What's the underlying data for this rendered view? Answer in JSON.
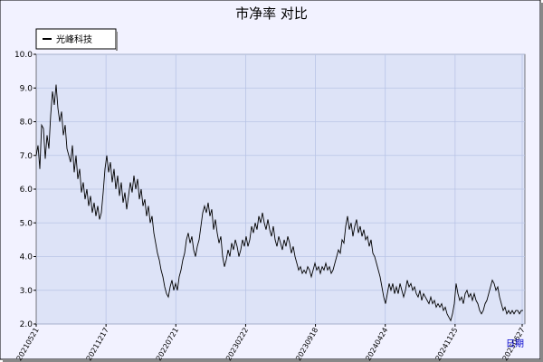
{
  "chart_data": {
    "type": "line",
    "title": "市净率  对比",
    "xlabel": "日期",
    "ylabel": "",
    "ylim": [
      2.0,
      10.0
    ],
    "yticks": [
      "2.0",
      "3.0",
      "4.0",
      "5.0",
      "6.0",
      "7.0",
      "8.0",
      "9.0",
      "10.0"
    ],
    "xticks": [
      "20210521",
      "20211217",
      "20220721",
      "20230222",
      "20230918",
      "20240424",
      "20241125",
      "20250627"
    ],
    "legend": "top-left",
    "grid": true,
    "colors": {
      "background": "#dde3f7",
      "line": "#000000",
      "frame": "#f2f2ff",
      "grid": "#b9c4e6"
    },
    "series": [
      {
        "name": "光峰科技",
        "points": [
          [
            0,
            7.0
          ],
          [
            1,
            7.3
          ],
          [
            2,
            6.6
          ],
          [
            3,
            7.9
          ],
          [
            4,
            7.8
          ],
          [
            5,
            6.9
          ],
          [
            6,
            7.6
          ],
          [
            7,
            7.2
          ],
          [
            8,
            8.2
          ],
          [
            9,
            8.9
          ],
          [
            10,
            8.5
          ],
          [
            11,
            9.1
          ],
          [
            12,
            8.4
          ],
          [
            13,
            8.0
          ],
          [
            14,
            8.3
          ],
          [
            15,
            7.6
          ],
          [
            16,
            7.9
          ],
          [
            17,
            7.2
          ],
          [
            18,
            7.0
          ],
          [
            19,
            6.8
          ],
          [
            20,
            7.3
          ],
          [
            21,
            6.5
          ],
          [
            22,
            7.0
          ],
          [
            23,
            6.3
          ],
          [
            24,
            6.6
          ],
          [
            25,
            5.9
          ],
          [
            26,
            6.2
          ],
          [
            27,
            5.7
          ],
          [
            28,
            6.0
          ],
          [
            29,
            5.5
          ],
          [
            30,
            5.8
          ],
          [
            31,
            5.3
          ],
          [
            32,
            5.6
          ],
          [
            33,
            5.2
          ],
          [
            34,
            5.5
          ],
          [
            35,
            5.1
          ],
          [
            36,
            5.3
          ],
          [
            37,
            5.9
          ],
          [
            38,
            6.6
          ],
          [
            39,
            7.0
          ],
          [
            40,
            6.5
          ],
          [
            41,
            6.8
          ],
          [
            42,
            6.2
          ],
          [
            43,
            6.6
          ],
          [
            44,
            6.0
          ],
          [
            45,
            6.4
          ],
          [
            46,
            5.8
          ],
          [
            47,
            6.2
          ],
          [
            48,
            5.6
          ],
          [
            49,
            5.9
          ],
          [
            50,
            5.4
          ],
          [
            51,
            5.8
          ],
          [
            52,
            6.2
          ],
          [
            53,
            5.9
          ],
          [
            54,
            6.4
          ],
          [
            55,
            6.0
          ],
          [
            56,
            6.3
          ],
          [
            57,
            5.7
          ],
          [
            58,
            6.0
          ],
          [
            59,
            5.5
          ],
          [
            60,
            5.7
          ],
          [
            61,
            5.2
          ],
          [
            62,
            5.5
          ],
          [
            63,
            5.0
          ],
          [
            64,
            5.2
          ],
          [
            65,
            4.7
          ],
          [
            66,
            4.4
          ],
          [
            67,
            4.1
          ],
          [
            68,
            3.9
          ],
          [
            69,
            3.6
          ],
          [
            70,
            3.4
          ],
          [
            71,
            3.1
          ],
          [
            72,
            2.9
          ],
          [
            73,
            2.8
          ],
          [
            74,
            3.1
          ],
          [
            75,
            3.3
          ],
          [
            76,
            3.0
          ],
          [
            77,
            3.2
          ],
          [
            78,
            3.0
          ],
          [
            79,
            3.4
          ],
          [
            80,
            3.6
          ],
          [
            81,
            3.9
          ],
          [
            82,
            4.1
          ],
          [
            83,
            4.5
          ],
          [
            84,
            4.7
          ],
          [
            85,
            4.4
          ],
          [
            86,
            4.6
          ],
          [
            87,
            4.2
          ],
          [
            88,
            4.0
          ],
          [
            89,
            4.3
          ],
          [
            90,
            4.5
          ],
          [
            91,
            4.9
          ],
          [
            92,
            5.3
          ],
          [
            93,
            5.5
          ],
          [
            94,
            5.3
          ],
          [
            95,
            5.6
          ],
          [
            96,
            5.2
          ],
          [
            97,
            5.4
          ],
          [
            98,
            4.8
          ],
          [
            99,
            5.1
          ],
          [
            100,
            4.7
          ],
          [
            101,
            4.4
          ],
          [
            102,
            4.6
          ],
          [
            103,
            4.0
          ],
          [
            104,
            3.7
          ],
          [
            105,
            3.9
          ],
          [
            106,
            4.2
          ],
          [
            107,
            4.0
          ],
          [
            108,
            4.4
          ],
          [
            109,
            4.2
          ],
          [
            110,
            4.5
          ],
          [
            111,
            4.3
          ],
          [
            112,
            4.0
          ],
          [
            113,
            4.2
          ],
          [
            114,
            4.5
          ],
          [
            115,
            4.3
          ],
          [
            116,
            4.6
          ],
          [
            117,
            4.3
          ],
          [
            118,
            4.5
          ],
          [
            119,
            4.9
          ],
          [
            120,
            4.7
          ],
          [
            121,
            5.0
          ],
          [
            122,
            4.8
          ],
          [
            123,
            5.2
          ],
          [
            124,
            5.0
          ],
          [
            125,
            5.3
          ],
          [
            126,
            5.0
          ],
          [
            127,
            4.8
          ],
          [
            128,
            5.1
          ],
          [
            129,
            4.8
          ],
          [
            130,
            4.6
          ],
          [
            131,
            4.9
          ],
          [
            132,
            4.5
          ],
          [
            133,
            4.3
          ],
          [
            134,
            4.6
          ],
          [
            135,
            4.4
          ],
          [
            136,
            4.2
          ],
          [
            137,
            4.5
          ],
          [
            138,
            4.3
          ],
          [
            139,
            4.6
          ],
          [
            140,
            4.4
          ],
          [
            141,
            4.1
          ],
          [
            142,
            4.3
          ],
          [
            143,
            4.0
          ],
          [
            144,
            3.8
          ],
          [
            145,
            3.6
          ],
          [
            146,
            3.7
          ],
          [
            147,
            3.5
          ],
          [
            148,
            3.6
          ],
          [
            149,
            3.5
          ],
          [
            150,
            3.7
          ],
          [
            151,
            3.6
          ],
          [
            152,
            3.4
          ],
          [
            153,
            3.6
          ],
          [
            154,
            3.8
          ],
          [
            155,
            3.6
          ],
          [
            156,
            3.7
          ],
          [
            157,
            3.5
          ],
          [
            158,
            3.7
          ],
          [
            159,
            3.6
          ],
          [
            160,
            3.8
          ],
          [
            161,
            3.6
          ],
          [
            162,
            3.7
          ],
          [
            163,
            3.5
          ],
          [
            164,
            3.6
          ],
          [
            165,
            3.8
          ],
          [
            166,
            4.0
          ],
          [
            167,
            4.2
          ],
          [
            168,
            4.1
          ],
          [
            169,
            4.5
          ],
          [
            170,
            4.4
          ],
          [
            171,
            4.9
          ],
          [
            172,
            5.2
          ],
          [
            173,
            4.8
          ],
          [
            174,
            5.0
          ],
          [
            175,
            4.6
          ],
          [
            176,
            4.9
          ],
          [
            177,
            5.1
          ],
          [
            178,
            4.7
          ],
          [
            179,
            4.9
          ],
          [
            180,
            4.6
          ],
          [
            181,
            4.8
          ],
          [
            182,
            4.5
          ],
          [
            183,
            4.6
          ],
          [
            184,
            4.3
          ],
          [
            185,
            4.5
          ],
          [
            186,
            4.1
          ],
          [
            187,
            4.0
          ],
          [
            188,
            3.8
          ],
          [
            189,
            3.6
          ],
          [
            190,
            3.4
          ],
          [
            191,
            3.1
          ],
          [
            192,
            2.8
          ],
          [
            193,
            2.6
          ],
          [
            194,
            2.9
          ],
          [
            195,
            3.2
          ],
          [
            196,
            3.0
          ],
          [
            197,
            3.2
          ],
          [
            198,
            2.9
          ],
          [
            199,
            3.1
          ],
          [
            200,
            2.9
          ],
          [
            201,
            3.2
          ],
          [
            202,
            3.0
          ],
          [
            203,
            2.8
          ],
          [
            204,
            3.0
          ],
          [
            205,
            3.3
          ],
          [
            206,
            3.1
          ],
          [
            207,
            3.2
          ],
          [
            208,
            3.0
          ],
          [
            209,
            3.1
          ],
          [
            210,
            2.9
          ],
          [
            211,
            2.8
          ],
          [
            212,
            3.0
          ],
          [
            213,
            2.7
          ],
          [
            214,
            2.9
          ],
          [
            215,
            2.8
          ],
          [
            216,
            2.7
          ],
          [
            217,
            2.6
          ],
          [
            218,
            2.8
          ],
          [
            219,
            2.6
          ],
          [
            220,
            2.7
          ],
          [
            221,
            2.5
          ],
          [
            222,
            2.6
          ],
          [
            223,
            2.5
          ],
          [
            224,
            2.6
          ],
          [
            225,
            2.4
          ],
          [
            226,
            2.5
          ],
          [
            227,
            2.3
          ],
          [
            228,
            2.2
          ],
          [
            229,
            2.1
          ],
          [
            230,
            2.3
          ],
          [
            231,
            2.6
          ],
          [
            232,
            3.2
          ],
          [
            233,
            2.9
          ],
          [
            234,
            2.7
          ],
          [
            235,
            2.8
          ],
          [
            236,
            2.6
          ],
          [
            237,
            2.9
          ],
          [
            238,
            3.0
          ],
          [
            239,
            2.8
          ],
          [
            240,
            2.9
          ],
          [
            241,
            2.7
          ],
          [
            242,
            2.9
          ],
          [
            243,
            2.7
          ],
          [
            244,
            2.6
          ],
          [
            245,
            2.4
          ],
          [
            246,
            2.3
          ],
          [
            247,
            2.4
          ],
          [
            248,
            2.6
          ],
          [
            249,
            2.7
          ],
          [
            250,
            2.9
          ],
          [
            251,
            3.1
          ],
          [
            252,
            3.3
          ],
          [
            253,
            3.2
          ],
          [
            254,
            3.0
          ],
          [
            255,
            3.1
          ],
          [
            256,
            2.8
          ],
          [
            257,
            2.6
          ],
          [
            258,
            2.4
          ],
          [
            259,
            2.5
          ],
          [
            260,
            2.3
          ],
          [
            261,
            2.4
          ],
          [
            262,
            2.3
          ],
          [
            263,
            2.4
          ],
          [
            264,
            2.3
          ],
          [
            265,
            2.4
          ],
          [
            266,
            2.4
          ],
          [
            267,
            2.3
          ],
          [
            268,
            2.4
          ],
          [
            269,
            2.4
          ]
        ]
      }
    ]
  }
}
